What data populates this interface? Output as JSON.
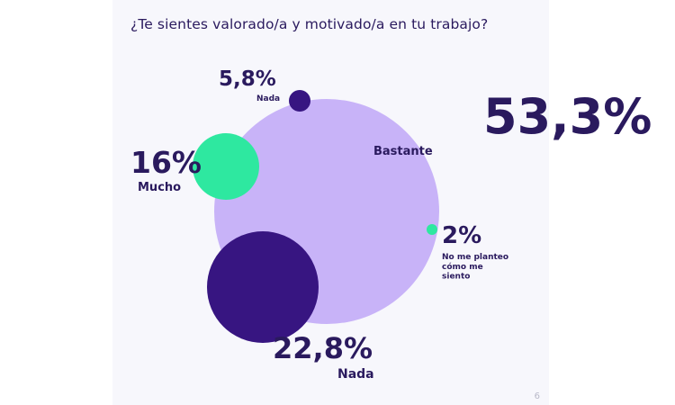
{
  "colors": {
    "panel_bg": "#f7f7fc",
    "dark_purple": "#371581",
    "lavender": "#c8b3f8",
    "mint": "#2ee8a0",
    "text": "#2a1a5e"
  },
  "chart_data": {
    "type": "bubble",
    "title": "¿Te sientes valorado/a y motivado/a en tu trabajo?",
    "series": [
      {
        "name": "Bastante",
        "value": 53.3,
        "value_label": "53,3%",
        "label_lines": [
          "Bastante"
        ],
        "color": "#c8b3f8"
      },
      {
        "name": "Nada",
        "value": 22.8,
        "value_label": "22,8%",
        "label_lines": [
          "Nada"
        ],
        "color": "#371581"
      },
      {
        "name": "Mucho",
        "value": 16,
        "value_label": "16%",
        "label_lines": [
          "Mucho"
        ],
        "color": "#2ee8a0"
      },
      {
        "name": "Nada",
        "value": 5.8,
        "value_label": "5,8%",
        "label_lines": [
          "Nada"
        ],
        "color": "#371581"
      },
      {
        "name": "No me planteo cómo me siento",
        "value": 2,
        "value_label": "2%",
        "label_lines": [
          "No me planteo",
          "cómo me",
          "siento"
        ],
        "color": "#2ee8a0"
      }
    ]
  },
  "page_number": "6"
}
